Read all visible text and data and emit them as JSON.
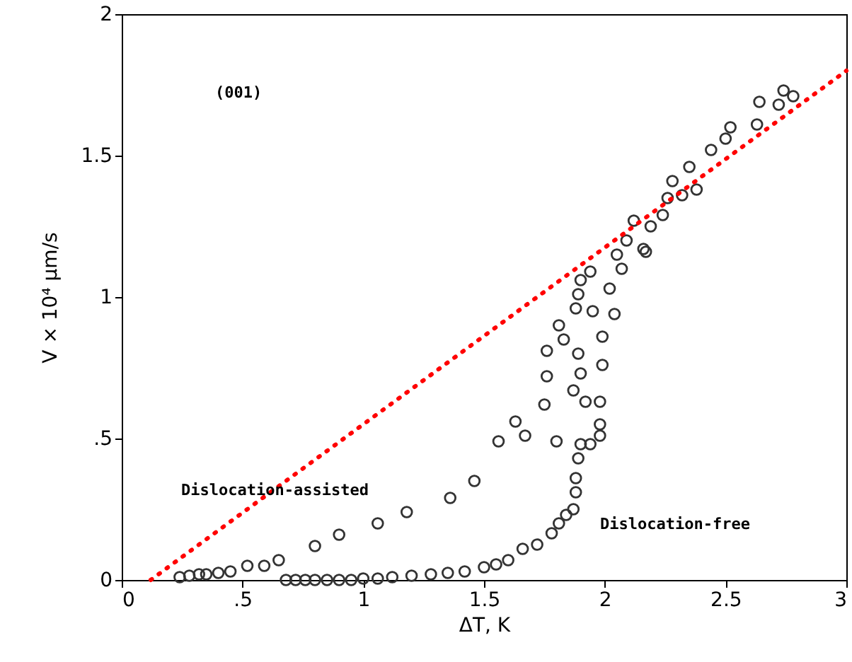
{
  "chart_data": {
    "type": "scatter",
    "xlabel": "ΔT, K",
    "ylabel": "V × 10⁴ μm/s",
    "xlim": [
      0,
      3
    ],
    "ylim": [
      0,
      2
    ],
    "xticks": [
      0,
      {
        "value": 0.5,
        "label": ".5"
      },
      1,
      1.5,
      2,
      2.5,
      3
    ],
    "yticks": [
      0,
      {
        "value": 0.5,
        "label": ".5"
      },
      1,
      1.5,
      2
    ],
    "grid": false,
    "annotations": [
      "(001)",
      "Dislocation-assisted",
      "Dislocation-free"
    ],
    "series": [
      {
        "marker": "circle",
        "color": "#333333",
        "x": [
          0.24,
          0.28,
          0.32,
          0.35,
          0.4,
          0.45,
          0.52,
          0.59,
          0.65,
          0.8,
          0.9,
          1.06,
          1.18,
          1.36,
          1.46,
          1.56,
          1.63,
          1.67,
          1.75,
          1.76,
          1.76,
          1.81,
          1.83,
          1.88,
          1.89,
          1.9,
          1.87,
          1.92,
          1.89,
          1.9,
          1.94,
          1.95,
          1.98,
          1.98,
          1.98,
          1.9,
          1.94,
          1.89,
          1.8,
          1.99,
          1.99,
          2.02,
          2.04,
          2.07,
          2.05,
          2.09,
          2.16,
          2.12,
          2.19,
          2.17,
          2.24,
          2.28,
          2.26,
          2.32,
          2.35,
          2.38,
          2.44,
          2.5,
          2.52,
          2.63,
          2.64,
          2.72,
          2.74,
          2.78
        ],
        "values": [
          0.01,
          0.015,
          0.02,
          0.02,
          0.025,
          0.03,
          0.05,
          0.05,
          0.07,
          0.12,
          0.16,
          0.2,
          0.24,
          0.29,
          0.35,
          0.49,
          0.56,
          0.51,
          0.62,
          0.72,
          0.81,
          0.9,
          0.85,
          0.96,
          0.8,
          0.73,
          0.67,
          0.63,
          1.01,
          1.06,
          1.09,
          0.95,
          0.63,
          0.55,
          0.51,
          0.48,
          0.48,
          0.43,
          0.49,
          0.76,
          0.86,
          1.03,
          0.94,
          1.1,
          1.15,
          1.2,
          1.17,
          1.27,
          1.25,
          1.16,
          1.29,
          1.41,
          1.35,
          1.36,
          1.46,
          1.38,
          1.52,
          1.56,
          1.6,
          1.61,
          1.69,
          1.68,
          1.73,
          1.71
        ]
      },
      {
        "marker": "circle",
        "color": "#333333",
        "x": [
          0.68,
          0.72,
          0.76,
          0.8,
          0.85,
          0.9,
          0.95,
          1.0,
          1.06,
          1.12,
          1.2,
          1.28,
          1.35,
          1.42,
          1.5,
          1.55,
          1.6,
          1.66,
          1.72,
          1.78,
          1.81,
          1.84,
          1.87,
          1.88,
          1.88
        ],
        "values": [
          0,
          0,
          0,
          0,
          0,
          0,
          0,
          0.005,
          0.005,
          0.01,
          0.015,
          0.02,
          0.025,
          0.03,
          0.045,
          0.055,
          0.07,
          0.11,
          0.125,
          0.165,
          0.2,
          0.23,
          0.25,
          0.31,
          0.36
        ]
      },
      {
        "type": "line",
        "color": "#ff0000",
        "line_style": "dotted",
        "x": [
          0.12,
          3.0
        ],
        "values": [
          0,
          1.8
        ]
      }
    ]
  }
}
